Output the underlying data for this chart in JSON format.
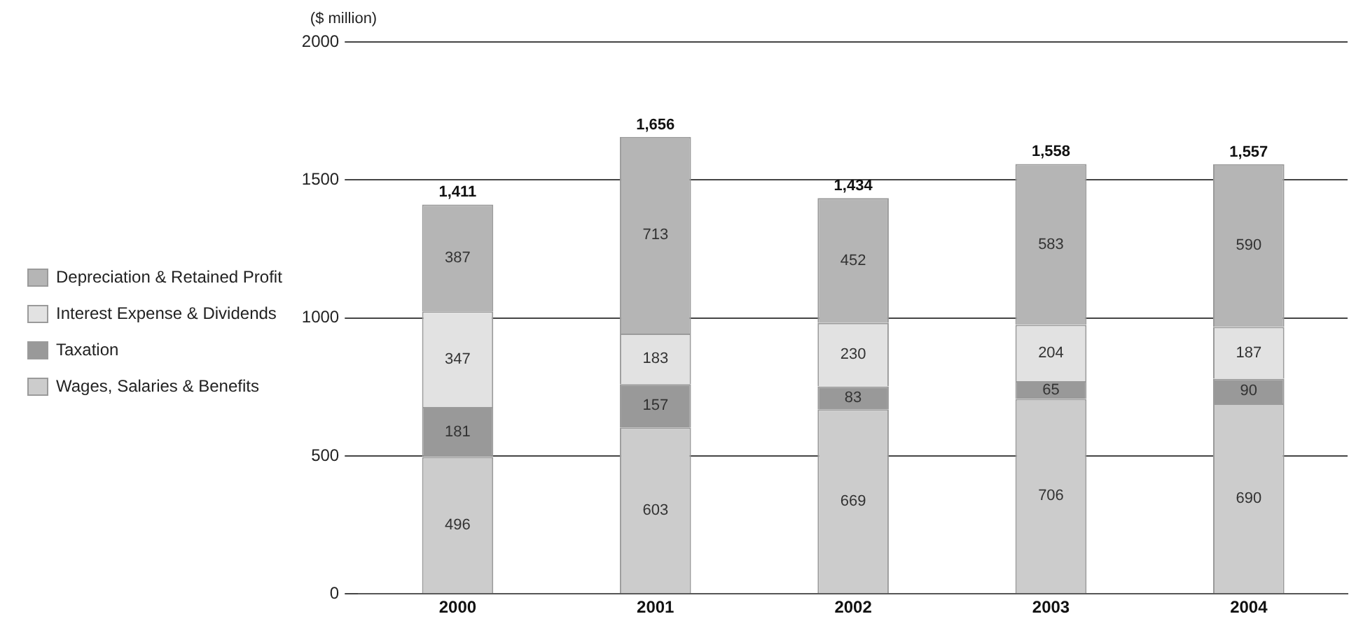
{
  "chart_data": {
    "type": "bar",
    "stacked": true,
    "ylabel": "($ million)",
    "categories": [
      "2000",
      "2001",
      "2002",
      "2003",
      "2004"
    ],
    "series": [
      {
        "name": "Wages, Salaries & Benefits",
        "color": "#cccccc",
        "values": [
          496,
          603,
          669,
          706,
          690
        ]
      },
      {
        "name": "Taxation",
        "color": "#999999",
        "values": [
          181,
          157,
          83,
          65,
          90
        ]
      },
      {
        "name": "Interest Expense & Dividends",
        "color": "#e2e2e2",
        "values": [
          347,
          183,
          230,
          204,
          187
        ]
      },
      {
        "name": "Depreciation & Retained Profit",
        "color": "#b5b5b5",
        "values": [
          387,
          713,
          452,
          583,
          590
        ]
      }
    ],
    "totals": [
      "1,411",
      "1,656",
      "1,434",
      "1,558",
      "1,557"
    ],
    "ylim": [
      0,
      2000
    ],
    "yticks": [
      0,
      500,
      1000,
      1500,
      2000
    ],
    "grid": "y",
    "legend": "left",
    "data_labels": true
  }
}
